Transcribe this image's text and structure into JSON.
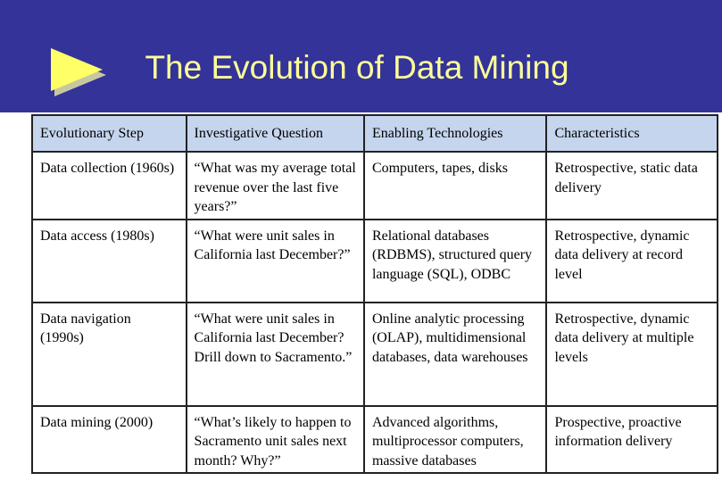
{
  "title": "The Evolution of Data Mining",
  "table": {
    "header": [
      "Evolutionary Step",
      "Investigative Question",
      "Enabling Technologies",
      "Characteristics"
    ],
    "rows": [
      [
        "Data collection (1960s)",
        "“What was my average total revenue over the last five years?”",
        "Computers, tapes, disks",
        "Retrospective, static data delivery"
      ],
      [
        "Data access (1980s)",
        "“What were unit sales in California last December?”",
        "Relational databases (RDBMS), structured query language (SQL), ODBC",
        "Retrospective, dynamic data delivery at record level"
      ],
      [
        "Data navigation (1990s)",
        "“What were unit sales in California last December? Drill down to Sacramento.”",
        "Online analytic processing (OLAP), multidimensional databases, data warehouses",
        "Retrospective, dynamic data delivery at multiple levels"
      ],
      [
        "Data mining (2000)",
        "“What’s likely to happen to Sacramento unit sales next month? Why?”",
        "Advanced algorithms, multiprocessor computers, massive databases",
        "Prospective, proactive information delivery"
      ]
    ]
  }
}
